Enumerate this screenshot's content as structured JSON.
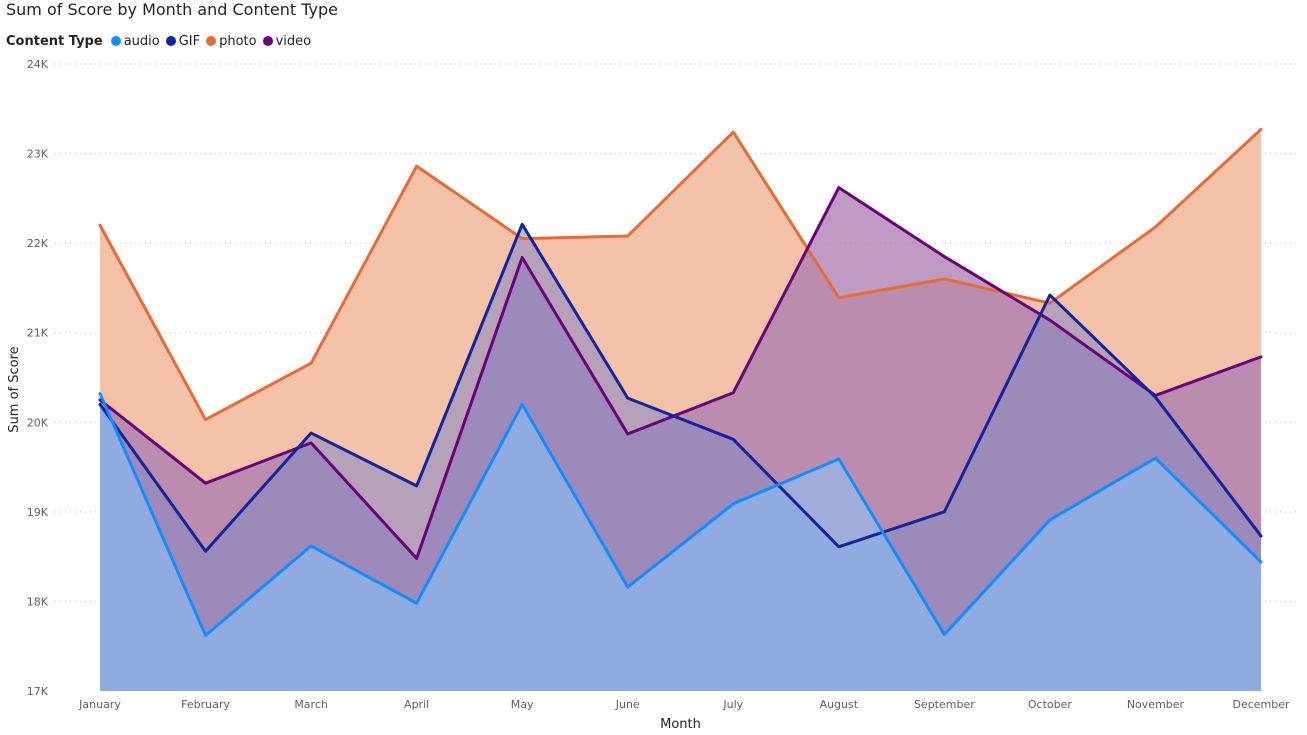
{
  "chart_data": {
    "type": "area",
    "title": "Sum of Score by Month and Content Type",
    "legend_title": "Content Type",
    "legend_position": "top-left",
    "xlabel": "Month",
    "ylabel": "Sum of Score",
    "ylim": [
      17000,
      24000
    ],
    "yticks": [
      {
        "value": 17000,
        "label": "17K"
      },
      {
        "value": 18000,
        "label": "18K"
      },
      {
        "value": 19000,
        "label": "19K"
      },
      {
        "value": 20000,
        "label": "20K"
      },
      {
        "value": 21000,
        "label": "21K"
      },
      {
        "value": 22000,
        "label": "22K"
      },
      {
        "value": 23000,
        "label": "23K"
      },
      {
        "value": 24000,
        "label": "24K"
      }
    ],
    "grid": true,
    "categories": [
      "January",
      "February",
      "March",
      "April",
      "May",
      "June",
      "July",
      "August",
      "September",
      "October",
      "November",
      "December"
    ],
    "series": [
      {
        "name": "photo",
        "color": "#E66C37",
        "fill": "#F4C2A9",
        "values": [
          22200,
          20030,
          20660,
          22860,
          22050,
          22080,
          23240,
          21390,
          21600,
          21330,
          22180,
          23270
        ]
      },
      {
        "name": "video",
        "color": "#6B007B",
        "fill": "#A979B0",
        "values": [
          20250,
          19320,
          19770,
          18480,
          21840,
          19870,
          20330,
          22620,
          21850,
          21140,
          20300,
          20730
        ]
      },
      {
        "name": "GIF",
        "color": "#12239E",
        "fill": "#8189C6",
        "values": [
          20200,
          18560,
          19880,
          19290,
          22210,
          20270,
          19810,
          18610,
          19000,
          21420,
          20280,
          18730
        ]
      },
      {
        "name": "audio",
        "color": "#118DFF",
        "fill": "#88C6FF",
        "values": [
          20320,
          17620,
          18620,
          17980,
          20200,
          18160,
          19090,
          19590,
          17630,
          18910,
          19600,
          18440
        ]
      }
    ],
    "legend_order": [
      "audio",
      "GIF",
      "photo",
      "video"
    ]
  }
}
